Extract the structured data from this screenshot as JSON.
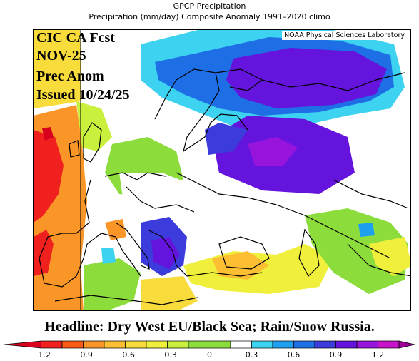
{
  "header": {
    "line1": "GPCP Precipitation",
    "line2": "Precipitation (mm/day) Composite Anomaly 1991–2020 climo"
  },
  "map": {
    "credit": "NOAA Physical Sciences Laboratory",
    "forecast_lines": [
      "CIC CA Fcst",
      "NOV-25",
      "Prec Anom",
      "Issued 10/24/25"
    ]
  },
  "headline": "Headline: Dry West EU/Black Sea; Rain/Snow Russia.",
  "colorbar": {
    "unit": "mm/day",
    "range": [
      -1.35,
      1.35
    ],
    "levels": [
      -1.35,
      -1.2,
      -1.05,
      -0.9,
      -0.75,
      -0.6,
      -0.45,
      -0.3,
      -0.15,
      0.15,
      0.3,
      0.45,
      0.6,
      0.75,
      0.9,
      1.05,
      1.2,
      1.35
    ],
    "colors": [
      "#d7001e",
      "#f0201e",
      "#fa5a14",
      "#fa9628",
      "#fcbe32",
      "#f8dc3c",
      "#f0f03c",
      "#c8f03c",
      "#8cdc3c",
      "#ffffff",
      "#3cd2f0",
      "#1ea0f0",
      "#1e6ee6",
      "#3c3cdc",
      "#6414dc",
      "#9614dc",
      "#c814c8",
      "#9e0096"
    ],
    "tick_labels": [
      "−1.2",
      "−0.9",
      "−0.6",
      "−0.3",
      "0",
      "0.3",
      "0.6",
      "0.9",
      "1.2"
    ],
    "tick_values": [
      -1.2,
      -0.9,
      -0.6,
      -0.3,
      0,
      0.3,
      0.6,
      0.9,
      1.2
    ]
  }
}
